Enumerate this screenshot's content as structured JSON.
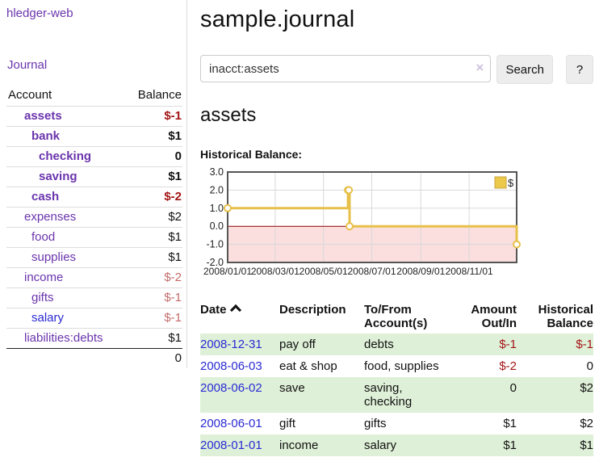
{
  "app": {
    "title": "hledger-web",
    "nav_journal": "Journal"
  },
  "sidebar": {
    "header": {
      "account": "Account",
      "balance": "Balance"
    },
    "accounts": [
      {
        "name": "assets",
        "level": 1,
        "bold": true,
        "link_color": "purple",
        "balance": "$-1",
        "balance_tone": "strong-negative",
        "balance_bold": true
      },
      {
        "name": "bank",
        "level": 2,
        "bold": true,
        "link_color": "purple",
        "balance": "$1",
        "balance_tone": "normal",
        "balance_bold": true
      },
      {
        "name": "checking",
        "level": 3,
        "bold": true,
        "link_color": "purple",
        "balance": "0",
        "balance_tone": "normal",
        "balance_bold": true
      },
      {
        "name": "saving",
        "level": 3,
        "bold": true,
        "link_color": "purple",
        "balance": "$1",
        "balance_tone": "normal",
        "balance_bold": true
      },
      {
        "name": "cash",
        "level": 2,
        "bold": true,
        "link_color": "purple",
        "balance": "$-2",
        "balance_tone": "strong-negative",
        "balance_bold": true
      },
      {
        "name": "expenses",
        "level": 1,
        "bold": false,
        "link_color": "purple",
        "balance": "$2",
        "balance_tone": "normal",
        "balance_bold": false
      },
      {
        "name": "food",
        "level": 2,
        "bold": false,
        "link_color": "purple",
        "balance": "$1",
        "balance_tone": "normal",
        "balance_bold": false
      },
      {
        "name": "supplies",
        "level": 2,
        "bold": false,
        "link_color": "purple",
        "balance": "$1",
        "balance_tone": "normal",
        "balance_bold": false
      },
      {
        "name": "income",
        "level": 1,
        "bold": false,
        "link_color": "purple",
        "balance": "$-2",
        "balance_tone": "soft-negative",
        "balance_bold": false
      },
      {
        "name": "gifts",
        "level": 2,
        "bold": false,
        "link_color": "purple",
        "balance": "$-1",
        "balance_tone": "soft-negative",
        "balance_bold": false
      },
      {
        "name": "salary",
        "level": 2,
        "bold": false,
        "link_color": "blue",
        "balance": "$-1",
        "balance_tone": "soft-negative",
        "balance_bold": false
      },
      {
        "name": "liabilities:debts",
        "level": 1,
        "bold": false,
        "link_color": "purple",
        "balance": "$1",
        "balance_tone": "normal",
        "balance_bold": false
      }
    ],
    "total": "0"
  },
  "main": {
    "title": "sample.journal",
    "search": {
      "value": "inacct:assets",
      "clear_icon": "×",
      "button_label": "Search",
      "help_label": "?"
    },
    "account_heading": "assets",
    "chart_label": "Historical Balance:"
  },
  "chart_data": {
    "type": "line",
    "step": true,
    "title": "Historical Balance:",
    "series": [
      {
        "name": "$",
        "color": "#e7c04a",
        "points": [
          [
            "2008-01-01",
            1
          ],
          [
            "2008-06-01",
            2
          ],
          [
            "2008-06-02",
            2
          ],
          [
            "2008-06-03",
            0
          ],
          [
            "2008-12-31",
            -1
          ]
        ]
      }
    ],
    "x_start": "2008-01-01",
    "x_end": "2008-12-31",
    "x_ticks": [
      "2008/01/01",
      "2008/03/01",
      "2008/05/01",
      "2008/07/01",
      "2008/09/01",
      "2008/11/01"
    ],
    "y_ticks": [
      "3.0",
      "2.0",
      "1.0",
      "0.0",
      "-1.0",
      "-2.0"
    ],
    "ylim": [
      -2,
      3
    ],
    "legend": {
      "position": "top-right",
      "label": "$"
    },
    "grid": true,
    "colors": {
      "line": "#e7c04a",
      "marker_fill": "#ffffff",
      "legend_fill": "#ecc94b",
      "legend_stroke": "#c7a53b",
      "negative_region": "#fbdede",
      "zero_line": "#900000",
      "plot_border": "#555555",
      "gridline": "#d9d9d9"
    }
  },
  "register": {
    "headers": {
      "date": "Date",
      "description": "Description",
      "tofrom": "To/From Account(s)",
      "amount": "Amount Out/In",
      "balance": "Historical Balance"
    },
    "rows": [
      {
        "date": "2008-12-31",
        "description": "pay off",
        "accounts": "debts",
        "amount": "$-1",
        "amount_tone": "strong-negative",
        "balance": "$-1",
        "balance_tone": "strong-negative"
      },
      {
        "date": "2008-06-03",
        "description": "eat & shop",
        "accounts": "food, supplies",
        "amount": "$-2",
        "amount_tone": "strong-negative",
        "balance": "0",
        "balance_tone": "normal"
      },
      {
        "date": "2008-06-02",
        "description": "save",
        "accounts": "saving, checking",
        "amount": "0",
        "amount_tone": "normal",
        "balance": "$2",
        "balance_tone": "normal"
      },
      {
        "date": "2008-06-01",
        "description": "gift",
        "accounts": "gifts",
        "amount": "$1",
        "amount_tone": "normal",
        "balance": "$2",
        "balance_tone": "normal"
      },
      {
        "date": "2008-01-01",
        "description": "income",
        "accounts": "salary",
        "amount": "$1",
        "amount_tone": "normal",
        "balance": "$1",
        "balance_tone": "normal"
      }
    ]
  }
}
